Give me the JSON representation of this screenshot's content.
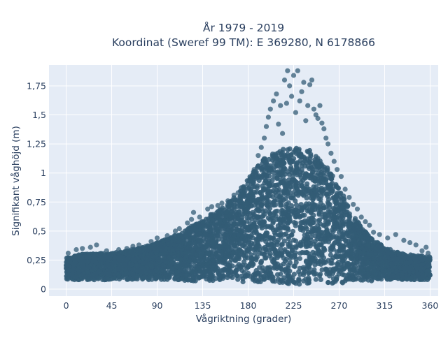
{
  "chart_data": {
    "type": "scatter",
    "title_line1": "År 1979 - 2019",
    "title_line2": "Koordinat (Sweref 99 TM): E 369280, N 6178866",
    "xlabel": "Vågriktning (grader)",
    "ylabel": "Signifikant våghöjd (m)",
    "xlim": [
      -17,
      368
    ],
    "ylim": [
      -0.06,
      1.93
    ],
    "x_ticks": [
      0,
      45,
      90,
      135,
      180,
      225,
      270,
      315,
      360
    ],
    "x_tick_labels": [
      "0",
      "45",
      "90",
      "135",
      "180",
      "225",
      "270",
      "315",
      "360"
    ],
    "y_ticks": [
      0,
      0.25,
      0.5,
      0.75,
      1,
      1.25,
      1.5,
      1.75
    ],
    "y_tick_labels": [
      "0",
      "0,25",
      "0,5",
      "0,75",
      "1",
      "1,25",
      "1,5",
      "1,75"
    ],
    "grid": true,
    "colors": {
      "marker": "#335c75",
      "plot_bg": "#e5ecf6",
      "grid": "#ffffff",
      "text": "#2a3f5f"
    },
    "envelope": {
      "description_units": "wave direction (degrees) vs. upper / lower bound of the dense point cloud (m)",
      "x": [
        0,
        15,
        30,
        45,
        60,
        75,
        90,
        105,
        120,
        135,
        150,
        165,
        180,
        195,
        210,
        225,
        240,
        255,
        270,
        285,
        300,
        315,
        330,
        345,
        360
      ],
      "upper": [
        0.27,
        0.3,
        0.31,
        0.31,
        0.33,
        0.36,
        0.4,
        0.45,
        0.52,
        0.6,
        0.68,
        0.78,
        0.95,
        1.12,
        1.2,
        1.22,
        1.2,
        1.1,
        0.88,
        0.62,
        0.45,
        0.36,
        0.31,
        0.29,
        0.28
      ],
      "lower": [
        0.08,
        0.08,
        0.08,
        0.08,
        0.08,
        0.08,
        0.08,
        0.08,
        0.07,
        0.07,
        0.07,
        0.06,
        0.06,
        0.05,
        0.05,
        0.04,
        0.04,
        0.05,
        0.05,
        0.06,
        0.07,
        0.08,
        0.08,
        0.08,
        0.08
      ]
    },
    "outliers": [
      [
        2,
        0.31
      ],
      [
        10,
        0.34
      ],
      [
        16,
        0.35
      ],
      [
        24,
        0.36
      ],
      [
        30,
        0.38
      ],
      [
        40,
        0.33
      ],
      [
        52,
        0.34
      ],
      [
        60,
        0.35
      ],
      [
        66,
        0.37
      ],
      [
        72,
        0.38
      ],
      [
        84,
        0.41
      ],
      [
        90,
        0.44
      ],
      [
        100,
        0.46
      ],
      [
        108,
        0.5
      ],
      [
        112,
        0.52
      ],
      [
        120,
        0.57
      ],
      [
        124,
        0.6
      ],
      [
        126,
        0.66
      ],
      [
        132,
        0.62
      ],
      [
        140,
        0.69
      ],
      [
        144,
        0.71
      ],
      [
        150,
        0.72
      ],
      [
        154,
        0.74
      ],
      [
        160,
        0.76
      ],
      [
        166,
        0.81
      ],
      [
        170,
        0.83
      ],
      [
        176,
        0.88
      ],
      [
        182,
        0.95
      ],
      [
        186,
        1.03
      ],
      [
        190,
        1.15
      ],
      [
        193,
        1.22
      ],
      [
        196,
        1.3
      ],
      [
        198,
        1.4
      ],
      [
        200,
        1.48
      ],
      [
        202,
        1.55
      ],
      [
        205,
        1.62
      ],
      [
        208,
        1.68
      ],
      [
        210,
        1.42
      ],
      [
        212,
        1.58
      ],
      [
        214,
        1.34
      ],
      [
        216,
        1.8
      ],
      [
        218,
        1.6
      ],
      [
        219,
        1.88
      ],
      [
        221,
        1.75
      ],
      [
        223,
        1.66
      ],
      [
        225,
        1.84
      ],
      [
        227,
        1.52
      ],
      [
        229,
        1.88
      ],
      [
        231,
        1.62
      ],
      [
        233,
        1.7
      ],
      [
        235,
        1.78
      ],
      [
        237,
        1.45
      ],
      [
        239,
        1.58
      ],
      [
        241,
        1.76
      ],
      [
        243,
        1.8
      ],
      [
        245,
        1.55
      ],
      [
        247,
        1.5
      ],
      [
        249,
        1.47
      ],
      [
        251,
        1.58
      ],
      [
        253,
        1.43
      ],
      [
        255,
        1.38
      ],
      [
        257,
        1.3
      ],
      [
        259,
        1.25
      ],
      [
        262,
        1.17
      ],
      [
        265,
        1.1
      ],
      [
        268,
        1.03
      ],
      [
        272,
        0.97
      ],
      [
        276,
        0.86
      ],
      [
        280,
        0.79
      ],
      [
        284,
        0.73
      ],
      [
        288,
        0.69
      ],
      [
        292,
        0.62
      ],
      [
        296,
        0.58
      ],
      [
        300,
        0.55
      ],
      [
        304,
        0.49
      ],
      [
        310,
        0.47
      ],
      [
        318,
        0.44
      ],
      [
        326,
        0.47
      ],
      [
        334,
        0.42
      ],
      [
        340,
        0.4
      ],
      [
        346,
        0.38
      ],
      [
        352,
        0.33
      ],
      [
        356,
        0.36
      ],
      [
        358,
        0.31
      ]
    ]
  }
}
